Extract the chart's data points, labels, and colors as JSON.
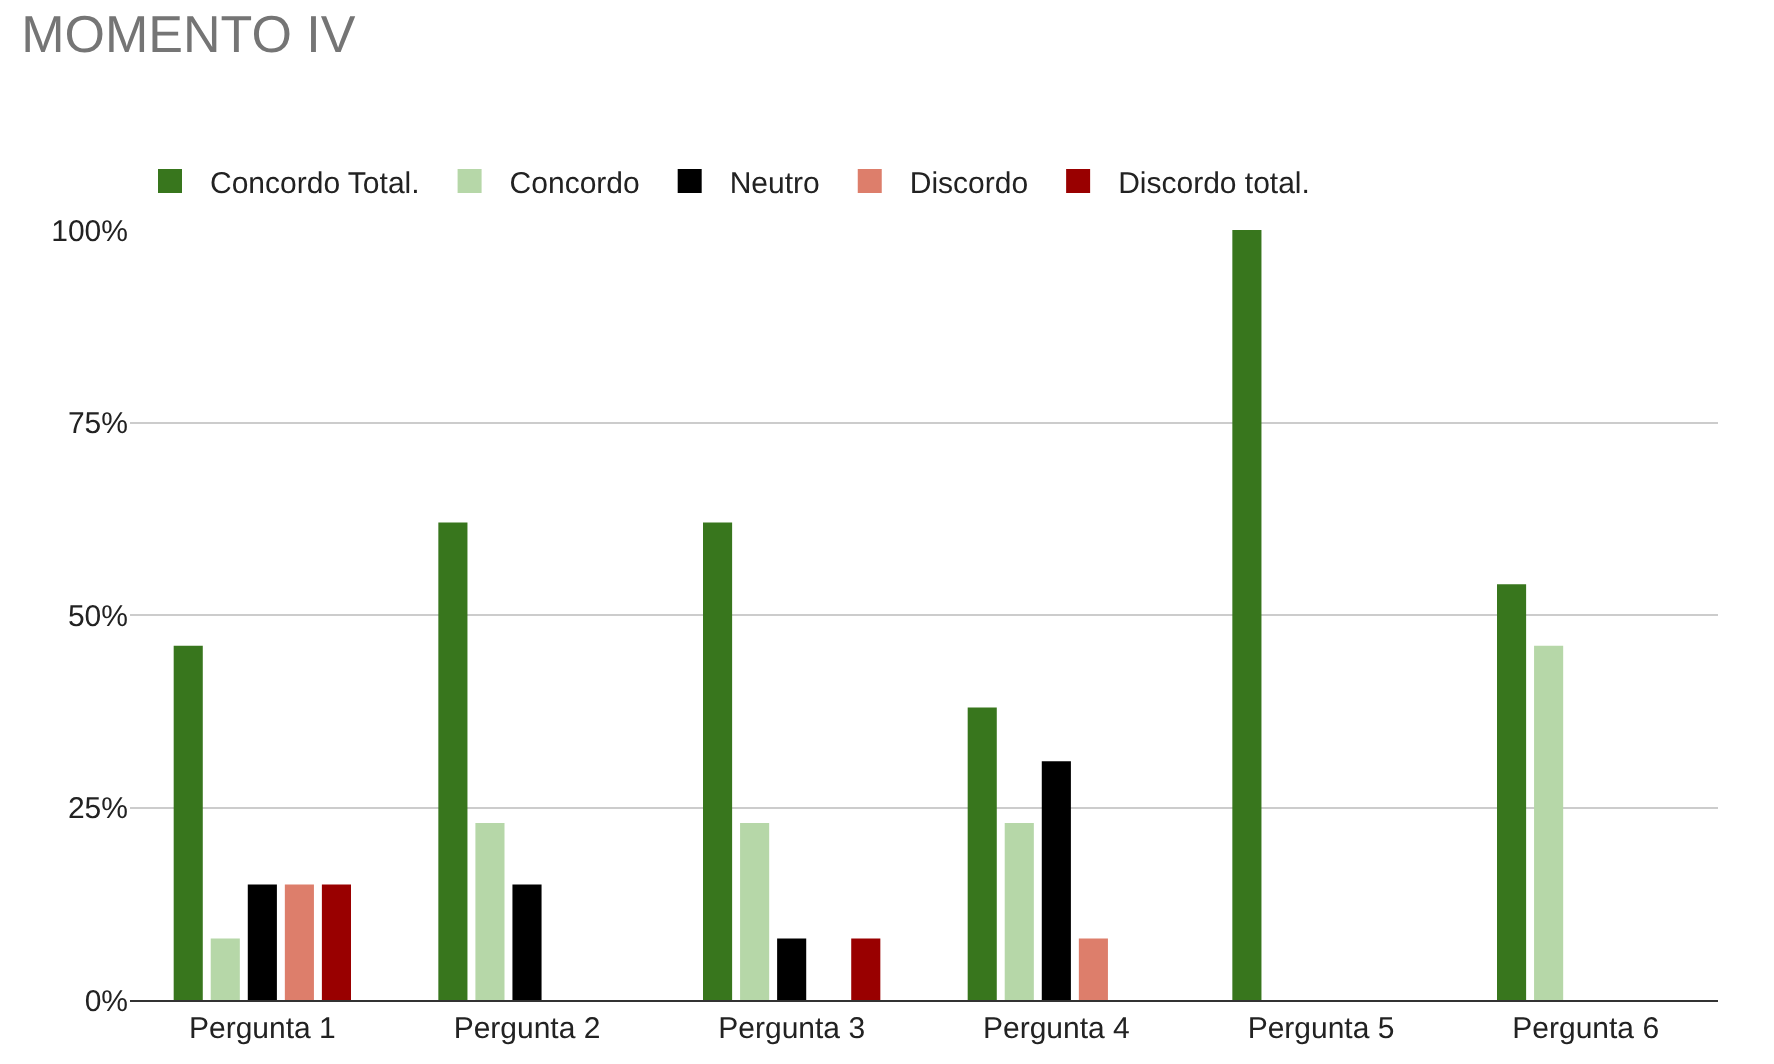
{
  "chart_data": {
    "type": "bar",
    "title": "MOMENTO IV",
    "categories": [
      "Pergunta 1",
      "Pergunta 2",
      "Pergunta 3",
      "Pergunta 4",
      "Pergunta 5",
      "Pergunta 6"
    ],
    "series": [
      {
        "name": "Concordo Total.",
        "color": "#38761d",
        "values": [
          46,
          62,
          62,
          38,
          100,
          54
        ]
      },
      {
        "name": "Concordo",
        "color": "#b6d7a8",
        "values": [
          8,
          23,
          23,
          23,
          0,
          46
        ]
      },
      {
        "name": "Neutro",
        "color": "#000000",
        "values": [
          15,
          15,
          8,
          31,
          0,
          0
        ]
      },
      {
        "name": "Discordo",
        "color": "#dd7e6b",
        "values": [
          15,
          0,
          0,
          8,
          0,
          0
        ]
      },
      {
        "name": "Discordo total.",
        "color": "#990000",
        "values": [
          15,
          0,
          8,
          0,
          0,
          0
        ]
      }
    ],
    "ylim": [
      0,
      100
    ],
    "yticks": [
      {
        "value": 0,
        "label": "0%"
      },
      {
        "value": 25,
        "label": "25%"
      },
      {
        "value": 50,
        "label": "50%"
      },
      {
        "value": 75,
        "label": "75%"
      },
      {
        "value": 100,
        "label": "100%"
      }
    ],
    "grid": "y",
    "legend": "top left"
  }
}
